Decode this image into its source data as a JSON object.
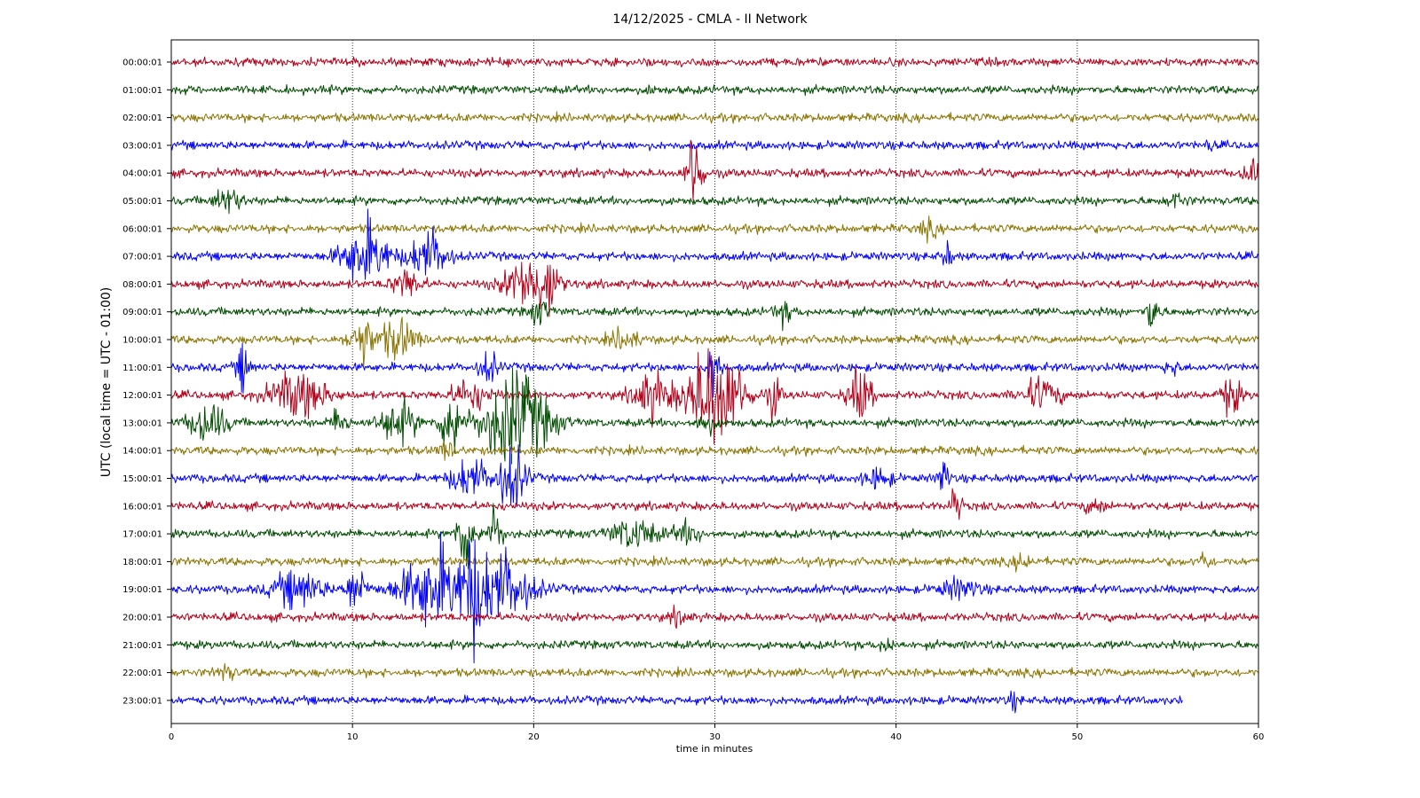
{
  "chart_data": {
    "type": "line",
    "title": "14/12/2025 - CMLA - II Network",
    "xlabel": "time in minutes",
    "ylabel": "UTC (local time = UTC - 01:00)",
    "xlim": [
      0,
      60
    ],
    "x_ticks": [
      0,
      10,
      20,
      30,
      40,
      50,
      60
    ],
    "grid": "vertical dotted lines at x ticks",
    "trace_colors": [
      "#b2001a",
      "#004d00",
      "#8b7400",
      "#0000ff"
    ],
    "traces": [
      {
        "label": "00:00:01",
        "end_minute": 60,
        "events": []
      },
      {
        "label": "01:00:01",
        "end_minute": 60,
        "events": [
          {
            "t": 26.5,
            "amp": 0.3,
            "dur": 0.3
          }
        ]
      },
      {
        "label": "02:00:01",
        "end_minute": 60,
        "events": []
      },
      {
        "label": "03:00:01",
        "end_minute": 60,
        "events": [
          {
            "t": 57.3,
            "amp": 0.3,
            "dur": 0.3
          }
        ]
      },
      {
        "label": "04:00:01",
        "end_minute": 60,
        "events": [
          {
            "t": 28.9,
            "amp": 1.9,
            "dur": 0.8
          },
          {
            "t": 59.6,
            "amp": 0.6,
            "dur": 0.8
          }
        ]
      },
      {
        "label": "05:00:01",
        "end_minute": 60,
        "events": [
          {
            "t": 3.1,
            "amp": 0.5,
            "dur": 1.5
          },
          {
            "t": 55.5,
            "amp": 0.3,
            "dur": 1
          }
        ]
      },
      {
        "label": "06:00:01",
        "end_minute": 60,
        "events": [
          {
            "t": 41.8,
            "amp": 0.3,
            "dur": 1
          }
        ]
      },
      {
        "label": "07:00:01",
        "end_minute": 60,
        "events": [
          {
            "t": 10.7,
            "amp": 1.3,
            "dur": 2.5
          },
          {
            "t": 14.2,
            "amp": 1.0,
            "dur": 2
          },
          {
            "t": 42.8,
            "amp": 0.5,
            "dur": 0.6
          }
        ]
      },
      {
        "label": "08:00:01",
        "end_minute": 60,
        "events": [
          {
            "t": 13.0,
            "amp": 0.6,
            "dur": 1.5
          },
          {
            "t": 19.8,
            "amp": 1.2,
            "dur": 2.5
          },
          {
            "t": 21.0,
            "amp": 1.0,
            "dur": 0.6
          }
        ]
      },
      {
        "label": "09:00:01",
        "end_minute": 60,
        "events": [
          {
            "t": 20.3,
            "amp": 0.5,
            "dur": 1
          },
          {
            "t": 33.8,
            "amp": 0.4,
            "dur": 1
          },
          {
            "t": 54.2,
            "amp": 1.1,
            "dur": 0.6
          }
        ]
      },
      {
        "label": "10:00:01",
        "end_minute": 60,
        "events": [
          {
            "t": 10.5,
            "amp": 1.0,
            "dur": 1.2
          },
          {
            "t": 12.5,
            "amp": 0.8,
            "dur": 2
          },
          {
            "t": 25.0,
            "amp": 0.4,
            "dur": 1.5
          }
        ]
      },
      {
        "label": "11:00:01",
        "end_minute": 60,
        "events": [
          {
            "t": 4.0,
            "amp": 1.0,
            "dur": 0.7
          },
          {
            "t": 17.5,
            "amp": 0.6,
            "dur": 1
          },
          {
            "t": 30.0,
            "amp": 1.4,
            "dur": 0.6
          },
          {
            "t": 55.2,
            "amp": 0.4,
            "dur": 0.6
          }
        ]
      },
      {
        "label": "12:00:01",
        "end_minute": 60,
        "events": [
          {
            "t": 7.0,
            "amp": 0.9,
            "dur": 3
          },
          {
            "t": 16.5,
            "amp": 0.6,
            "dur": 2
          },
          {
            "t": 26.5,
            "amp": 0.9,
            "dur": 2
          },
          {
            "t": 30.0,
            "amp": 2.2,
            "dur": 3
          },
          {
            "t": 33.3,
            "amp": 0.9,
            "dur": 0.6
          },
          {
            "t": 38.0,
            "amp": 1.1,
            "dur": 1.2
          },
          {
            "t": 48.0,
            "amp": 0.6,
            "dur": 2
          },
          {
            "t": 58.5,
            "amp": 0.8,
            "dur": 1
          }
        ]
      },
      {
        "label": "13:00:01",
        "end_minute": 60,
        "events": [
          {
            "t": 2.0,
            "amp": 0.8,
            "dur": 2
          },
          {
            "t": 9.3,
            "amp": 0.7,
            "dur": 0.8
          },
          {
            "t": 12.5,
            "amp": 0.8,
            "dur": 2
          },
          {
            "t": 15.5,
            "amp": 1.4,
            "dur": 1.2
          },
          {
            "t": 19.0,
            "amp": 2.0,
            "dur": 3.5
          },
          {
            "t": 29.5,
            "amp": 0.4,
            "dur": 1
          }
        ]
      },
      {
        "label": "14:00:01",
        "end_minute": 60,
        "events": [
          {
            "t": 15.2,
            "amp": 0.3,
            "dur": 1
          }
        ]
      },
      {
        "label": "15:00:01",
        "end_minute": 60,
        "events": [
          {
            "t": 16.5,
            "amp": 0.8,
            "dur": 2
          },
          {
            "t": 18.8,
            "amp": 1.3,
            "dur": 1.5
          },
          {
            "t": 39.0,
            "amp": 0.4,
            "dur": 1.5
          },
          {
            "t": 42.6,
            "amp": 1.0,
            "dur": 0.5
          }
        ]
      },
      {
        "label": "16:00:01",
        "end_minute": 60,
        "events": [
          {
            "t": 43.3,
            "amp": 1.0,
            "dur": 0.5
          },
          {
            "t": 51.0,
            "amp": 0.3,
            "dur": 1
          }
        ]
      },
      {
        "label": "17:00:01",
        "end_minute": 60,
        "events": [
          {
            "t": 16.2,
            "amp": 1.5,
            "dur": 0.9
          },
          {
            "t": 17.8,
            "amp": 1.0,
            "dur": 1
          },
          {
            "t": 25.5,
            "amp": 0.6,
            "dur": 2.5
          },
          {
            "t": 28.5,
            "amp": 0.4,
            "dur": 1.5
          }
        ]
      },
      {
        "label": "18:00:01",
        "end_minute": 60,
        "events": [
          {
            "t": 47.0,
            "amp": 0.3,
            "dur": 1
          },
          {
            "t": 57.0,
            "amp": 0.4,
            "dur": 0.6
          }
        ]
      },
      {
        "label": "19:00:01",
        "end_minute": 60,
        "events": [
          {
            "t": 7.0,
            "amp": 0.8,
            "dur": 2.5
          },
          {
            "t": 10.2,
            "amp": 1.0,
            "dur": 1
          },
          {
            "t": 14.5,
            "amp": 1.6,
            "dur": 3.5
          },
          {
            "t": 16.6,
            "amp": 1.5,
            "dur": 0.8
          },
          {
            "t": 18.0,
            "amp": 1.5,
            "dur": 3.5
          },
          {
            "t": 43.5,
            "amp": 0.4,
            "dur": 2
          }
        ]
      },
      {
        "label": "20:00:01",
        "end_minute": 60,
        "events": [
          {
            "t": 28.0,
            "amp": 0.3,
            "dur": 1
          }
        ]
      },
      {
        "label": "21:00:01",
        "end_minute": 60,
        "events": [
          {
            "t": 39.5,
            "amp": 0.4,
            "dur": 0.6
          }
        ]
      },
      {
        "label": "22:00:01",
        "end_minute": 60,
        "events": [
          {
            "t": 3.0,
            "amp": 0.3,
            "dur": 1
          }
        ]
      },
      {
        "label": "23:00:01",
        "end_minute": 55.8,
        "events": [
          {
            "t": 46.5,
            "amp": 0.3,
            "dur": 0.6
          }
        ]
      }
    ]
  }
}
